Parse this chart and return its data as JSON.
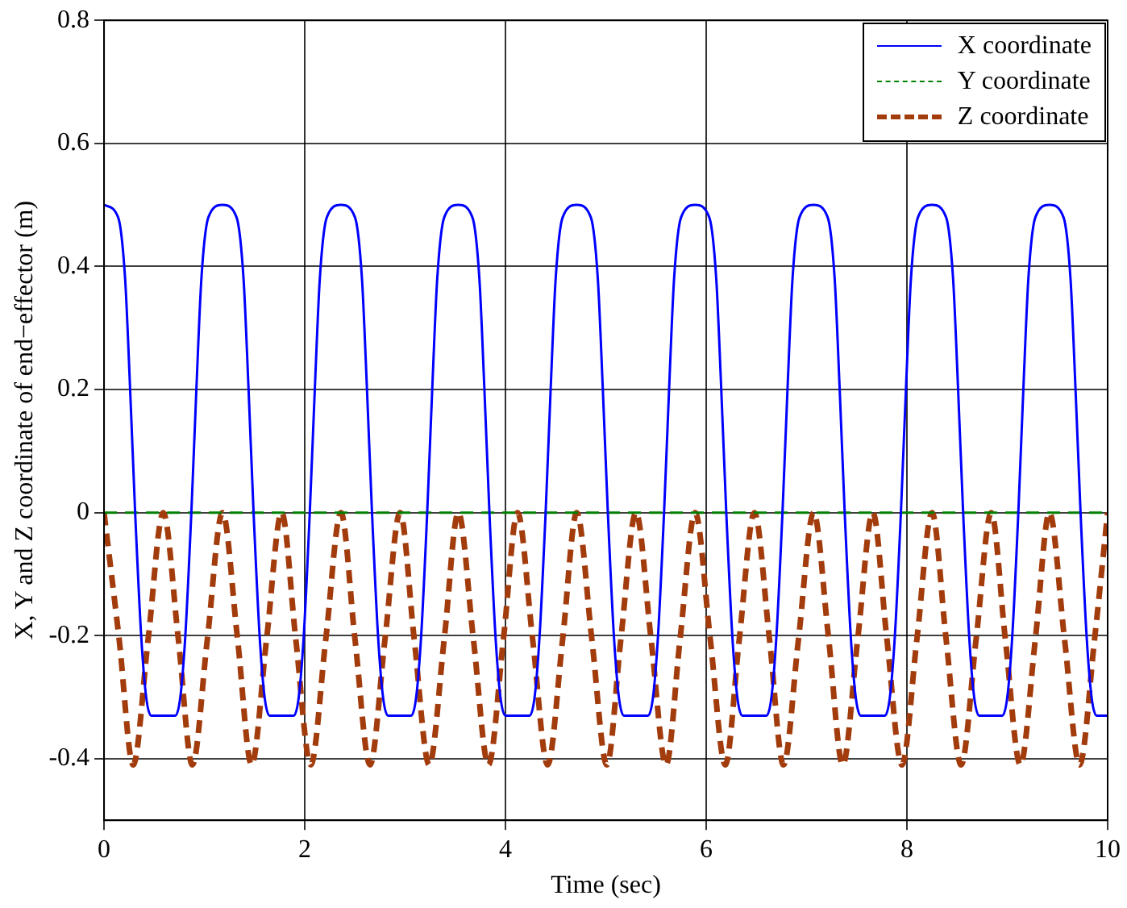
{
  "chart_data": {
    "type": "line",
    "xlabel": "Time (sec)",
    "ylabel": "X, Y and Z coordinate of end−effector (m)",
    "xlim": [
      0,
      10
    ],
    "xticks": [
      0,
      2,
      4,
      6,
      8,
      10
    ],
    "ylim": [
      -0.5,
      0.8
    ],
    "yticks": [
      -0.4,
      -0.2,
      0,
      0.2,
      0.4,
      0.6,
      0.8
    ],
    "grid": true,
    "legend": "top right",
    "marker": "none",
    "series": [
      {
        "name": "X coordinate",
        "color": "#0000ff",
        "line_style": "solid",
        "x": [
          0,
          0.14,
          0.21,
          0.26,
          0.31,
          0.37,
          0.42,
          0.47,
          0.71,
          0.76,
          0.81,
          0.87,
          0.92,
          0.97,
          1.04,
          1.18,
          1.32,
          1.39,
          1.44,
          1.49,
          1.55,
          1.6,
          1.65,
          1.89,
          1.94,
          1.99,
          2.05,
          2.1,
          2.15,
          2.22,
          2.36,
          2.5,
          2.57,
          2.62,
          2.67,
          2.73,
          2.78,
          2.83,
          3.06,
          3.11,
          3.16,
          3.22,
          3.27,
          3.32,
          3.39,
          3.53,
          3.67,
          3.74,
          3.79,
          3.84,
          3.9,
          3.95,
          4.0,
          4.24,
          4.29,
          4.34,
          4.4,
          4.45,
          4.5,
          4.57,
          4.71,
          4.85,
          4.92,
          4.97,
          5.02,
          5.08,
          5.13,
          5.18,
          5.42,
          5.47,
          5.52,
          5.58,
          5.63,
          5.68,
          5.75,
          5.89,
          6.03,
          6.1,
          6.15,
          6.2,
          6.26,
          6.31,
          6.36,
          6.6,
          6.65,
          6.7,
          6.76,
          6.81,
          6.86,
          6.93,
          7.07,
          7.21,
          7.28,
          7.33,
          7.38,
          7.44,
          7.49,
          7.54,
          7.78,
          7.83,
          7.88,
          7.94,
          7.99,
          8.04,
          8.11,
          8.25,
          8.39,
          8.46,
          8.51,
          8.56,
          8.62,
          8.67,
          8.72,
          8.95,
          9.0,
          9.05,
          9.11,
          9.16,
          9.21,
          9.28,
          9.42,
          9.56,
          9.63,
          9.68,
          9.73,
          9.79,
          9.84,
          9.89,
          10
        ],
        "values": [
          0.5,
          0.48,
          0.38,
          0.2,
          0,
          -0.2,
          -0.3,
          -0.33,
          -0.33,
          -0.3,
          -0.2,
          0,
          0.2,
          0.38,
          0.48,
          0.5,
          0.48,
          0.38,
          0.2,
          0,
          -0.2,
          -0.3,
          -0.33,
          -0.33,
          -0.3,
          -0.2,
          0,
          0.2,
          0.38,
          0.48,
          0.5,
          0.48,
          0.38,
          0.2,
          0,
          -0.2,
          -0.3,
          -0.33,
          -0.33,
          -0.3,
          -0.2,
          0,
          0.2,
          0.38,
          0.48,
          0.5,
          0.48,
          0.38,
          0.2,
          0,
          -0.2,
          -0.3,
          -0.33,
          -0.33,
          -0.3,
          -0.2,
          0,
          0.2,
          0.38,
          0.48,
          0.5,
          0.48,
          0.38,
          0.2,
          0,
          -0.2,
          -0.3,
          -0.33,
          -0.33,
          -0.3,
          -0.2,
          0,
          0.2,
          0.38,
          0.48,
          0.5,
          0.48,
          0.38,
          0.2,
          0,
          -0.2,
          -0.3,
          -0.33,
          -0.33,
          -0.3,
          -0.2,
          0,
          0.2,
          0.38,
          0.48,
          0.5,
          0.48,
          0.38,
          0.2,
          0,
          -0.2,
          -0.3,
          -0.33,
          -0.33,
          -0.3,
          -0.2,
          0,
          0.2,
          0.38,
          0.48,
          0.5,
          0.48,
          0.38,
          0.2,
          0,
          -0.2,
          -0.3,
          -0.33,
          -0.33,
          -0.3,
          -0.2,
          0,
          0.2,
          0.38,
          0.48,
          0.5,
          0.48,
          0.38,
          0.2,
          0,
          -0.2,
          -0.3,
          -0.33,
          -0.33
        ]
      },
      {
        "name": "Y coordinate",
        "color": "#008000",
        "line_style": "dashed",
        "x": [
          0,
          10
        ],
        "values": [
          0,
          0
        ]
      },
      {
        "name": "Z coordinate",
        "color": "#a33c0c",
        "line_style": "dashed",
        "x": [
          0,
          0.15,
          0.29,
          0.44,
          0.59,
          0.74,
          0.88,
          1.03,
          1.18,
          1.33,
          1.47,
          1.62,
          1.77,
          1.91,
          2.06,
          2.21,
          2.36,
          2.5,
          2.65,
          2.8,
          2.95,
          3.09,
          3.24,
          3.39,
          3.53,
          3.68,
          3.83,
          3.98,
          4.12,
          4.27,
          4.42,
          4.57,
          4.71,
          4.86,
          5.01,
          5.15,
          5.3,
          5.45,
          5.6,
          5.74,
          5.89,
          6.04,
          6.19,
          6.33,
          6.48,
          6.63,
          6.77,
          6.92,
          7.07,
          7.22,
          7.36,
          7.51,
          7.66,
          7.8,
          7.95,
          8.1,
          8.25,
          8.39,
          8.54,
          8.69,
          8.84,
          8.98,
          9.13,
          9.28,
          9.42,
          9.57,
          9.72,
          9.87,
          10
        ],
        "values": [
          0,
          -0.205,
          -0.41,
          -0.205,
          0,
          -0.205,
          -0.41,
          -0.205,
          0,
          -0.205,
          -0.41,
          -0.205,
          0,
          -0.205,
          -0.41,
          -0.205,
          0,
          -0.205,
          -0.41,
          -0.205,
          0,
          -0.205,
          -0.41,
          -0.205,
          0,
          -0.205,
          -0.41,
          -0.205,
          0,
          -0.205,
          -0.41,
          -0.205,
          0,
          -0.205,
          -0.41,
          -0.205,
          0,
          -0.205,
          -0.41,
          -0.205,
          0,
          -0.205,
          -0.41,
          -0.205,
          0,
          -0.205,
          -0.41,
          -0.205,
          0,
          -0.205,
          -0.41,
          -0.205,
          0,
          -0.205,
          -0.41,
          -0.205,
          0,
          -0.205,
          -0.41,
          -0.205,
          0,
          -0.205,
          -0.41,
          -0.205,
          0,
          -0.205,
          -0.41,
          -0.205,
          0
        ]
      }
    ]
  }
}
